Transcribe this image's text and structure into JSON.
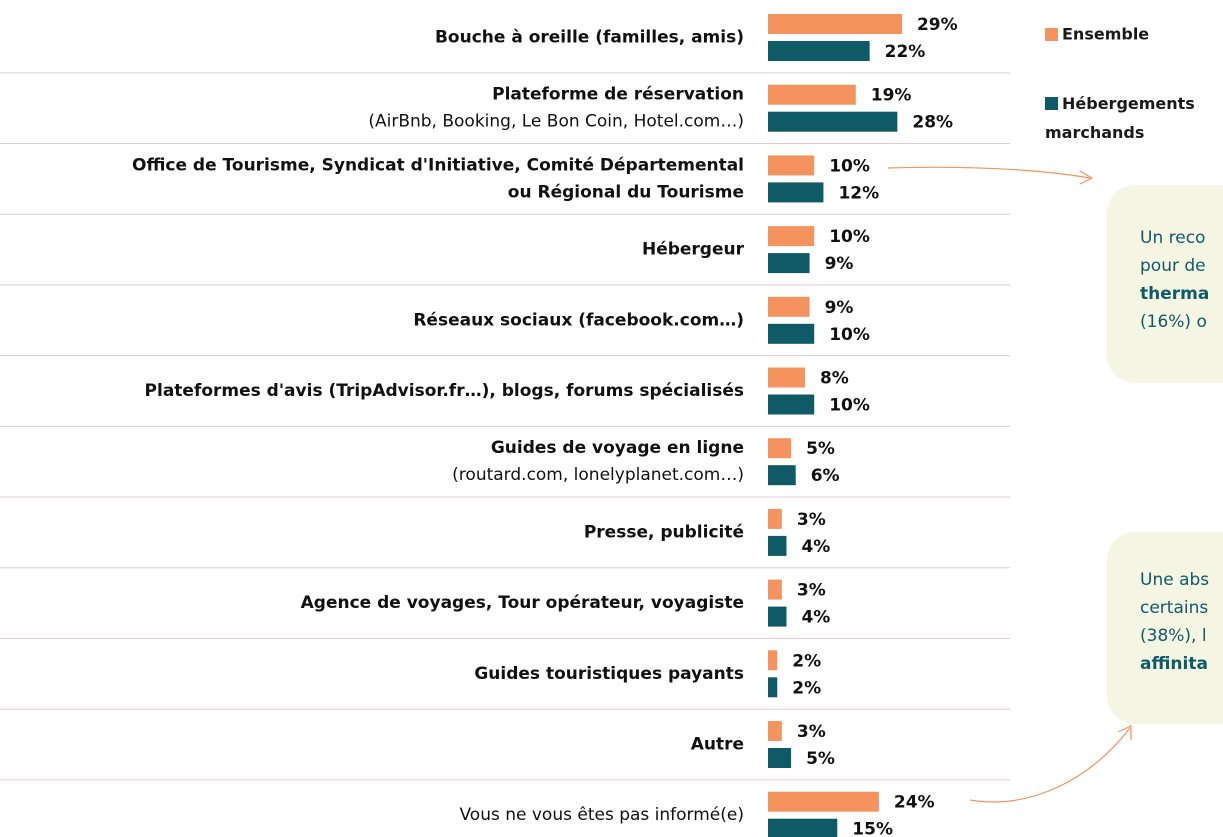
{
  "chart_data": {
    "type": "hbar-grouped",
    "categories": [
      [
        "Bouche à oreille (familles, amis)"
      ],
      [
        "Plateforme de réservation",
        "(AirBnb, Booking, Le Bon Coin, Hotel.com…)"
      ],
      [
        "Office de Tourisme, Syndicat d'Initiative, Comité Départemental",
        "ou Régional du Tourisme"
      ],
      [
        "Hébergeur"
      ],
      [
        "Réseaux sociaux (facebook.com…)"
      ],
      [
        "Plateformes d'avis (TripAdvisor.fr…), blogs, forums spécialisés"
      ],
      [
        "Guides de voyage en ligne",
        "(routard.com, lonelyplanet.com…)"
      ],
      [
        "Presse, publicité"
      ],
      [
        "Agence de voyages, Tour opérateur, voyagiste"
      ],
      [
        "Guides touristiques payants"
      ],
      [
        "Autre"
      ],
      [
        "Vous ne vous êtes pas informé(e)"
      ]
    ],
    "category_lines_bold": [
      [
        true
      ],
      [
        true,
        false
      ],
      [
        true,
        true
      ],
      [
        true
      ],
      [
        true
      ],
      [
        true
      ],
      [
        true,
        false
      ],
      [
        true
      ],
      [
        true
      ],
      [
        true
      ],
      [
        true
      ],
      [
        false
      ]
    ],
    "series": [
      {
        "name": "Ensemble",
        "color": "#f4935e",
        "values": [
          29,
          19,
          10,
          10,
          9,
          8,
          5,
          3,
          3,
          2,
          3,
          24
        ],
        "value_labels": [
          "29%",
          "19%",
          "10%",
          "10%",
          "9%",
          "8%",
          "5%",
          "3%",
          "3%",
          "2%",
          "3%",
          "24%"
        ]
      },
      {
        "name": "Hébergements marchands",
        "color": "#0e5a66",
        "values": [
          22,
          28,
          12,
          9,
          10,
          10,
          6,
          4,
          4,
          2,
          5,
          15
        ],
        "value_labels": [
          "22%",
          "28%",
          "12%",
          "9%",
          "10%",
          "10%",
          "6%",
          "4%",
          "4%",
          "2%",
          "5%",
          "15%"
        ]
      }
    ],
    "annotations": [
      {
        "lines": [
          "Un reco",
          "pour de",
          "therma",
          "(16%) o"
        ],
        "bold": [
          false,
          false,
          true,
          false
        ]
      },
      {
        "lines": [
          "Une abs",
          "certains",
          "(38%), l",
          "affinita"
        ],
        "bold": [
          false,
          false,
          false,
          true
        ]
      }
    ]
  }
}
